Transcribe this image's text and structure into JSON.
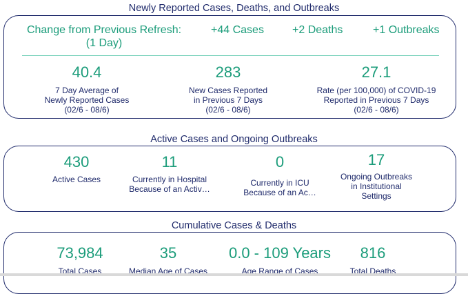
{
  "section1": {
    "title": "Newly Reported Cases, Deaths, and Outbreaks",
    "change_label_line1": "Change from Previous Refresh:",
    "change_label_line2": "(1 Day)",
    "change_cases": "+44 Cases",
    "change_deaths": "+2 Deaths",
    "change_outbreaks": "+1 Outbreaks",
    "metrics": [
      {
        "value": "40.4",
        "line1": "7 Day Average of",
        "line2": "Newly Reported Cases",
        "line3": "(02/6 - 08/6)"
      },
      {
        "value": "283",
        "line1": "New Cases Reported",
        "line2": "in Previous 7 Days",
        "line3": "(02/6 - 08/6)"
      },
      {
        "value": "27.1",
        "line1": "Rate (per 100,000) of COVID-19",
        "line2": "Reported in Previous 7 Days",
        "line3": "(02/6 - 08/6)"
      }
    ]
  },
  "section2": {
    "title": "Active Cases and Ongoing Outbreaks",
    "metrics": [
      {
        "value": "430",
        "line1": "Active Cases",
        "line2": "",
        "line3": ""
      },
      {
        "value": "11",
        "line1": "Currently in Hospital",
        "line2": "Because of an Activ…",
        "line3": ""
      },
      {
        "value": "0",
        "line1": "Currently in ICU",
        "line2": "Because of an Ac…",
        "line3": ""
      },
      {
        "value": "17",
        "line1": "Ongoing Outbreaks",
        "line2": "in Institutional",
        "line3": "Settings"
      }
    ]
  },
  "section3": {
    "title": "Cumulative Cases & Deaths",
    "metrics": [
      {
        "value": "73,984",
        "line1": "Total Cases"
      },
      {
        "value": "35",
        "line1": "Median Age of Cases"
      },
      {
        "value": "0.0 - 109 Years",
        "line1": "Age Range of Cases"
      },
      {
        "value": "816",
        "line1": "Total Deaths"
      }
    ]
  },
  "colors": {
    "accent": "#1b9c7a",
    "navy": "#1f2a6b",
    "separator": "#7fd3be"
  }
}
